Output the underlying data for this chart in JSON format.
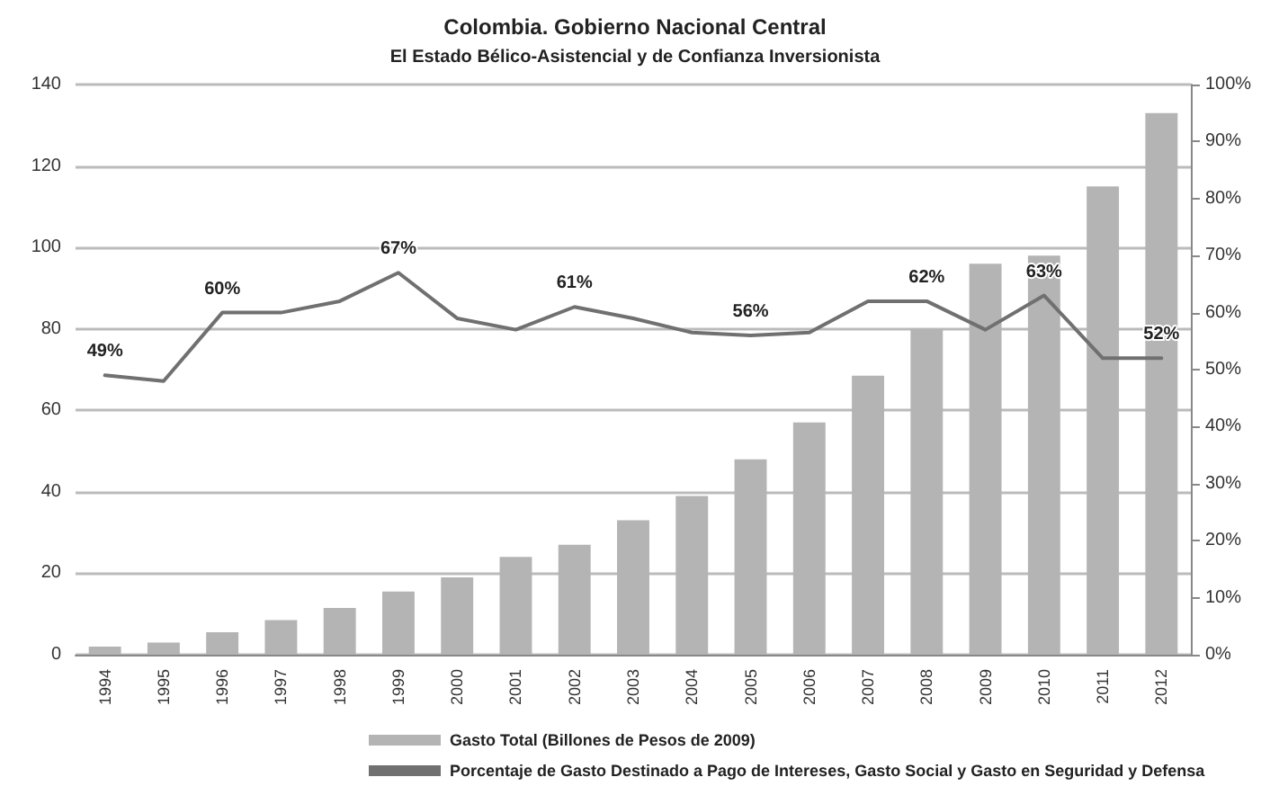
{
  "chart_data": {
    "type": "bar",
    "title": "Colombia. Gobierno Nacional Central",
    "subtitle": "El Estado Bélico-Asistencial y de Confianza Inversionista",
    "categories": [
      "1994",
      "1995",
      "1996",
      "1997",
      "1998",
      "1999",
      "2000",
      "2001",
      "2002",
      "2003",
      "2004",
      "2005",
      "2006",
      "2007",
      "2008",
      "2009",
      "2010",
      "2011",
      "2012"
    ],
    "series": [
      {
        "name": "Gasto Total (Billones de Pesos de 2009)",
        "color": "#b4b4b4",
        "values": [
          2,
          3,
          5.5,
          8.5,
          11.5,
          15.5,
          19,
          24,
          27,
          33,
          39,
          48,
          57,
          68.5,
          80,
          96,
          98,
          115,
          133
        ]
      },
      {
        "name": "Porcentaje de Gasto Destinado a Pago de Intereses, Gasto Social y Gasto en Seguridad y Defensa",
        "type": "line",
        "axis": "y2",
        "color": "#707070",
        "values": [
          49,
          48,
          60,
          60,
          62,
          67,
          59,
          57,
          61,
          59,
          56.5,
          56,
          56.5,
          62,
          62,
          57,
          63,
          52,
          52
        ],
        "value_labels": [
          "49%",
          null,
          "60%",
          null,
          null,
          "67%",
          null,
          null,
          "61%",
          null,
          null,
          "56%",
          null,
          null,
          "62%",
          null,
          "63%",
          null,
          "52%"
        ]
      }
    ],
    "ylim": [
      0,
      140
    ],
    "yticks": [
      0,
      20,
      40,
      60,
      80,
      100,
      120,
      140
    ],
    "y2lim": [
      0,
      100
    ],
    "y2ticks": [
      {
        "value": 0,
        "label": "0%"
      },
      {
        "value": 10,
        "label": "10%"
      },
      {
        "value": 20,
        "label": "20%"
      },
      {
        "value": 30,
        "label": "30%"
      },
      {
        "value": 40,
        "label": "40%"
      },
      {
        "value": 50,
        "label": "50%"
      },
      {
        "value": 60,
        "label": "60%"
      },
      {
        "value": 70,
        "label": "70%"
      },
      {
        "value": 80,
        "label": "80%"
      },
      {
        "value": 90,
        "label": "90%"
      },
      {
        "value": 100,
        "label": "100%"
      }
    ],
    "grid": "y",
    "legend": "bottom",
    "marker": "none",
    "line_style": "solid"
  }
}
